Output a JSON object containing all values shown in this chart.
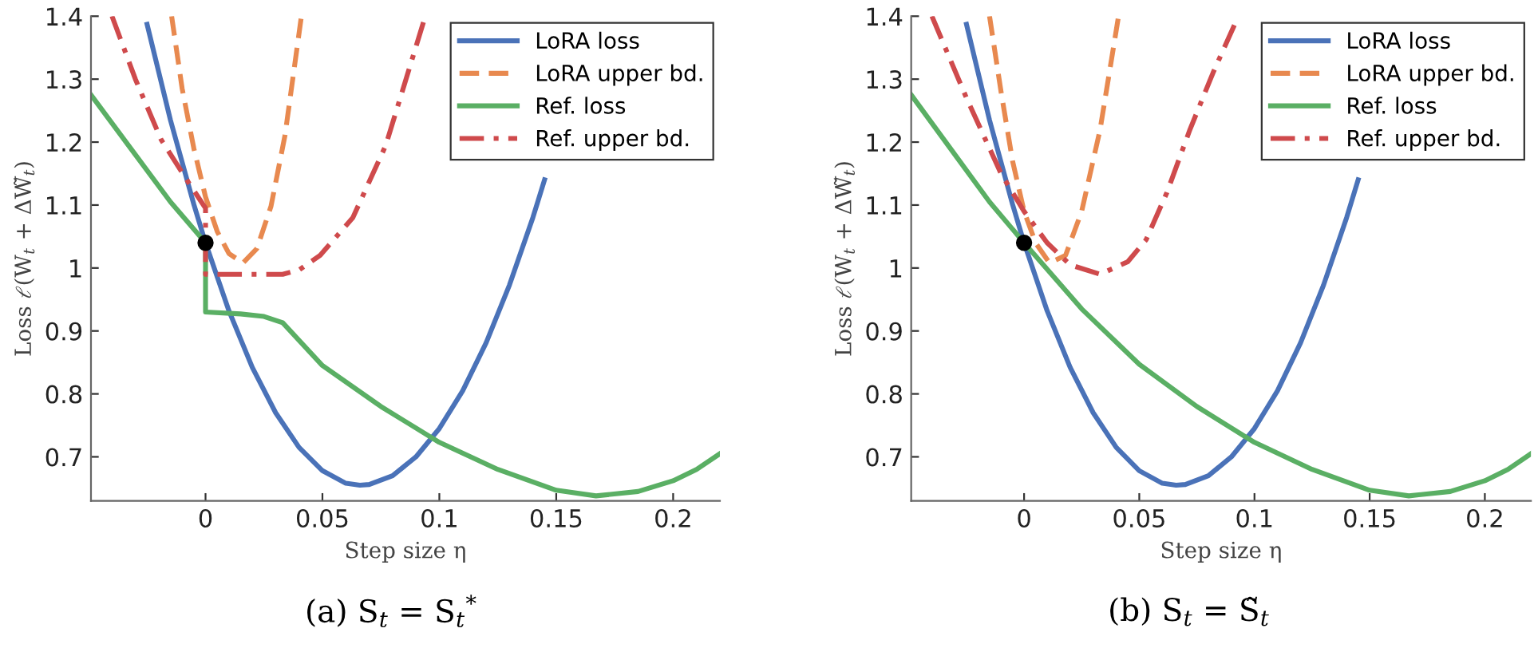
{
  "chart_data": [
    {
      "type": "line",
      "xlabel": "Step size η",
      "ylabel": "Loss ℓ(W$_{t}$ + ΔW̃$_{t}$)",
      "xlim": [
        -0.049,
        0.22
      ],
      "ylim": [
        0.63,
        1.4
      ],
      "xticks": [
        0,
        0.05,
        0.1,
        0.15,
        0.2
      ],
      "yticks": [
        0.7,
        0.8,
        0.9,
        1,
        1.1,
        1.2,
        1.3,
        1.4
      ],
      "grid": false,
      "legend": "top right",
      "annotations": [
        "(a) S$_{t}$ = S$_{t}$$^{*}$"
      ],
      "series": [
        {
          "name": "LoRA loss",
          "color": "#4a72b8",
          "line_style": "solid",
          "x": [
            -0.025,
            -0.015,
            -0.005,
            0,
            0.01,
            0.02,
            0.03,
            0.04,
            0.05,
            0.06,
            0.066,
            0.07,
            0.08,
            0.09,
            0.1,
            0.11,
            0.12,
            0.13,
            0.14,
            0.145
          ],
          "values": [
            1.387,
            1.235,
            1.101,
            1.04,
            0.932,
            0.842,
            0.77,
            0.715,
            0.678,
            0.658,
            0.655,
            0.656,
            0.67,
            0.7,
            0.745,
            0.805,
            0.881,
            0.973,
            1.08,
            1.14
          ]
        },
        {
          "name": "LoRA upper bd.",
          "color": "#e8894f",
          "line_style": "dashed",
          "x": [
            -0.0145,
            -0.01,
            -0.005,
            0,
            0.005,
            0.01,
            0.016,
            0.022,
            0.028,
            0.034,
            0.041
          ],
          "values": [
            1.4,
            1.285,
            1.19,
            1.113,
            1.058,
            1.023,
            1.008,
            1.031,
            1.098,
            1.211,
            1.4
          ]
        },
        {
          "name": "Ref. loss",
          "color": "#5aaf64",
          "line_style": "solid",
          "x": [
            -0.049,
            -0.03,
            -0.015,
            0,
            0,
            0.015,
            0.025,
            0.033,
            0.05,
            0.075,
            0.1,
            0.125,
            0.15,
            0.167,
            0.185,
            0.2,
            0.21,
            0.22
          ],
          "values": [
            1.275,
            1.18,
            1.105,
            1.04,
            0.93,
            0.927,
            0.923,
            0.913,
            0.845,
            0.78,
            0.723,
            0.68,
            0.647,
            0.638,
            0.645,
            0.662,
            0.68,
            0.705
          ]
        },
        {
          "name": "Ref. upper bd.",
          "color": "#cf4a4c",
          "line_style": "dashdot",
          "x": [
            -0.04,
            -0.03,
            -0.019,
            -0.0075,
            0,
            0,
            0.033,
            0.04,
            0.049,
            0.063,
            0.077,
            0.094
          ],
          "values": [
            1.4,
            1.3,
            1.204,
            1.137,
            1.095,
            0.99,
            0.99,
            0.997,
            1.02,
            1.08,
            1.194,
            1.4
          ]
        },
        {
          "type": "scatter",
          "color": "#000000",
          "marker": "circle",
          "x": [
            0
          ],
          "values": [
            1.04
          ]
        }
      ]
    },
    {
      "type": "line",
      "xlabel": "Step size η",
      "ylabel": "Loss ℓ(W$_{t}$ + ΔW̃$_{t}$)",
      "xlim": [
        -0.049,
        0.22
      ],
      "ylim": [
        0.63,
        1.4
      ],
      "xticks": [
        0,
        0.05,
        0.1,
        0.15,
        0.2
      ],
      "yticks": [
        0.7,
        0.8,
        0.9,
        1,
        1.1,
        1.2,
        1.3,
        1.4
      ],
      "grid": false,
      "legend": "top right",
      "annotations": [
        "(b) S$_{t}$ = S̃$_{t}$"
      ],
      "series": [
        {
          "name": "LoRA loss",
          "color": "#4a72b8",
          "line_style": "solid",
          "x": [
            -0.025,
            -0.015,
            -0.005,
            0,
            0.01,
            0.02,
            0.03,
            0.04,
            0.05,
            0.06,
            0.066,
            0.07,
            0.08,
            0.09,
            0.1,
            0.11,
            0.12,
            0.13,
            0.14,
            0.145
          ],
          "values": [
            1.387,
            1.235,
            1.101,
            1.04,
            0.932,
            0.842,
            0.77,
            0.715,
            0.678,
            0.658,
            0.655,
            0.656,
            0.67,
            0.7,
            0.745,
            0.805,
            0.881,
            0.973,
            1.08,
            1.14
          ]
        },
        {
          "name": "LoRA upper bd.",
          "color": "#e8894f",
          "line_style": "dashed",
          "x": [
            -0.015,
            -0.01,
            -0.005,
            0,
            0.005,
            0.011,
            0.018,
            0.025,
            0.033,
            0.041
          ],
          "values": [
            1.4,
            1.28,
            1.17,
            1.09,
            1.04,
            1.008,
            1.02,
            1.09,
            1.22,
            1.4
          ]
        },
        {
          "name": "Ref. loss",
          "color": "#5aaf64",
          "line_style": "solid",
          "x": [
            -0.049,
            -0.03,
            -0.015,
            0,
            0.025,
            0.05,
            0.075,
            0.1,
            0.125,
            0.15,
            0.167,
            0.185,
            0.2,
            0.21,
            0.22
          ],
          "values": [
            1.275,
            1.18,
            1.105,
            1.04,
            0.935,
            0.847,
            0.78,
            0.723,
            0.68,
            0.647,
            0.638,
            0.645,
            0.662,
            0.68,
            0.705
          ]
        },
        {
          "name": "Ref. upper bd.",
          "color": "#cf4a4c",
          "line_style": "dashdot",
          "x": [
            -0.04,
            -0.025,
            -0.01,
            0,
            0.01,
            0.02,
            0.033,
            0.045,
            0.053,
            0.062,
            0.072,
            0.082,
            0.093
          ],
          "values": [
            1.4,
            1.27,
            1.15,
            1.09,
            1.04,
            1.005,
            0.99,
            1.01,
            1.045,
            1.12,
            1.22,
            1.31,
            1.4
          ]
        },
        {
          "type": "scatter",
          "color": "#000000",
          "marker": "circle",
          "x": [
            0
          ],
          "values": [
            1.04
          ]
        }
      ]
    }
  ]
}
